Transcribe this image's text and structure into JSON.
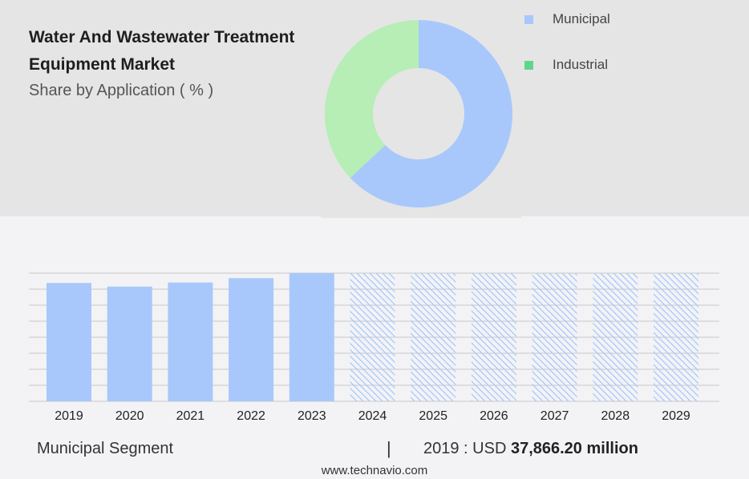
{
  "header": {
    "title": "Water And Wastewater Treatment Equipment Market",
    "subtitle": "Share by Application ( % )"
  },
  "colors": {
    "municipal": "#a8c8fb",
    "industrial": "#b6eeb6",
    "industrial_legend": "#5fd68a",
    "grid": "#c8c8c8",
    "hatch": "#a8c8fb"
  },
  "chart_data": [
    {
      "type": "pie",
      "donut": true,
      "labels": [
        "Municipal",
        "Industrial"
      ],
      "values": [
        63,
        37
      ],
      "legend_position": "top-right"
    },
    {
      "type": "bar",
      "categories": [
        "2019",
        "2020",
        "2021",
        "2022",
        "2023",
        "2024",
        "2025",
        "2026",
        "2027",
        "2028",
        "2029"
      ],
      "values": [
        37866.2,
        36700,
        38000,
        39400,
        41000,
        null,
        null,
        null,
        null,
        null,
        null
      ],
      "forecast_categories": [
        "2024",
        "2025",
        "2026",
        "2027",
        "2028",
        "2029"
      ],
      "ylim": [
        0,
        41000
      ],
      "grid": true
    }
  ],
  "footer": {
    "segment_label": "Municipal Segment",
    "separator": "|",
    "value_prefix": "2019 : USD",
    "value_bold": "37,866.20 million",
    "website": "www.technavio.com"
  }
}
